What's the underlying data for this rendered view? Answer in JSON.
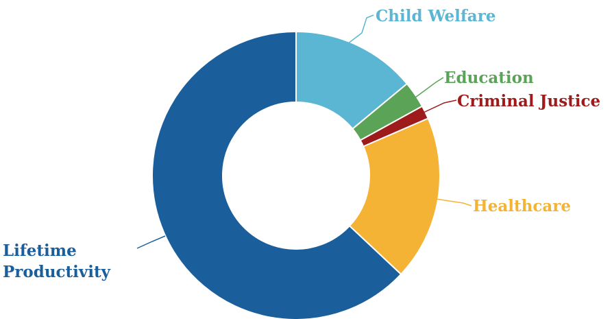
{
  "chart_data": {
    "type": "pie",
    "donut": true,
    "title": "",
    "legend": "none",
    "categories": [
      "Child Welfare",
      "Education",
      "Criminal Justice",
      "Healthcare",
      "Lifetime Productivity"
    ],
    "values": [
      14.0,
      3.0,
      1.5,
      18.5,
      63.0
    ],
    "series": [
      {
        "label": "Child Welfare",
        "value": 14.0,
        "color": "#5bb6d3"
      },
      {
        "label": "Education",
        "value": 3.0,
        "color": "#5aa357"
      },
      {
        "label": "Criminal Justice",
        "value": 1.5,
        "color": "#9e1b1b"
      },
      {
        "label": "Healthcare",
        "value": 18.5,
        "color": "#f5b335"
      },
      {
        "label": "Lifetime Productivity",
        "value": 63.0,
        "color": "#1a5f9c"
      }
    ],
    "label_lines": [
      [
        "Child Welfare"
      ],
      [
        "Education"
      ],
      [
        "Criminal Justice"
      ],
      [
        "Healthcare"
      ],
      [
        "Lifetime",
        "Productivity"
      ]
    ]
  }
}
